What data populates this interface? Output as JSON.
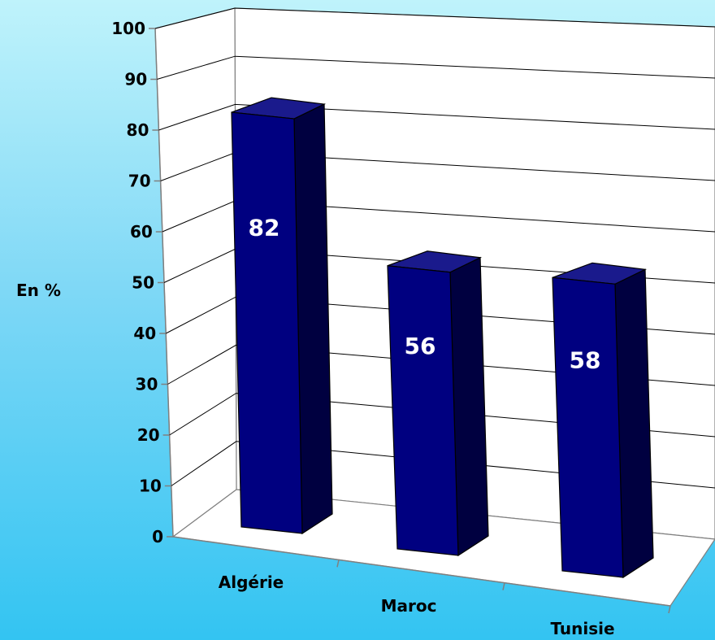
{
  "chart_data": {
    "type": "bar",
    "categories": [
      "Algérie",
      "Maroc",
      "Tunisie"
    ],
    "values": [
      82,
      56,
      58
    ],
    "data_labels": [
      "82",
      "56",
      "58"
    ],
    "ylabel": "En %",
    "ylim": [
      0,
      100
    ],
    "yticks": [
      "0",
      "10",
      "20",
      "30",
      "40",
      "50",
      "60",
      "70",
      "80",
      "90",
      "100"
    ],
    "grid": true,
    "style": "3d-column",
    "colors": {
      "bar_front": "#000080",
      "bar_side": "#000040",
      "bar_top": "#1a1a8c",
      "wall": "#ffffff",
      "floor": "#ffffff"
    }
  }
}
